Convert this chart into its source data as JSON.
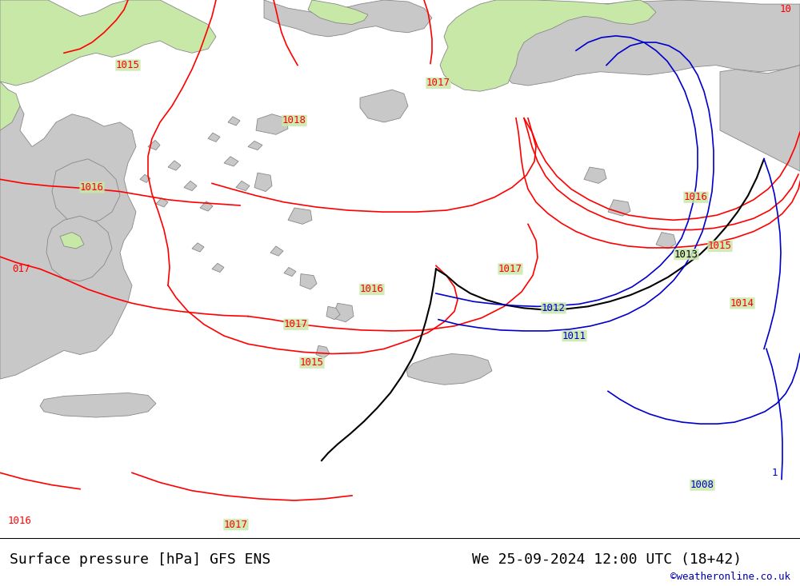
{
  "title_left": "Surface pressure [hPa] GFS ENS",
  "title_right": "We 25-09-2024 12:00 UTC (18+42)",
  "watermark": "©weatheronline.co.uk",
  "sea_color": "#c8e8a8",
  "land_color": "#c8c8c8",
  "land_edge_color": "#888888",
  "white_bg": "#ffffff",
  "contour_color_red": "#ff0000",
  "contour_color_black": "#000000",
  "contour_color_blue": "#0000cc",
  "font_size_title": 13,
  "font_size_label": 9,
  "font_size_watermark": 9,
  "label_bg_alpha": 0.85
}
